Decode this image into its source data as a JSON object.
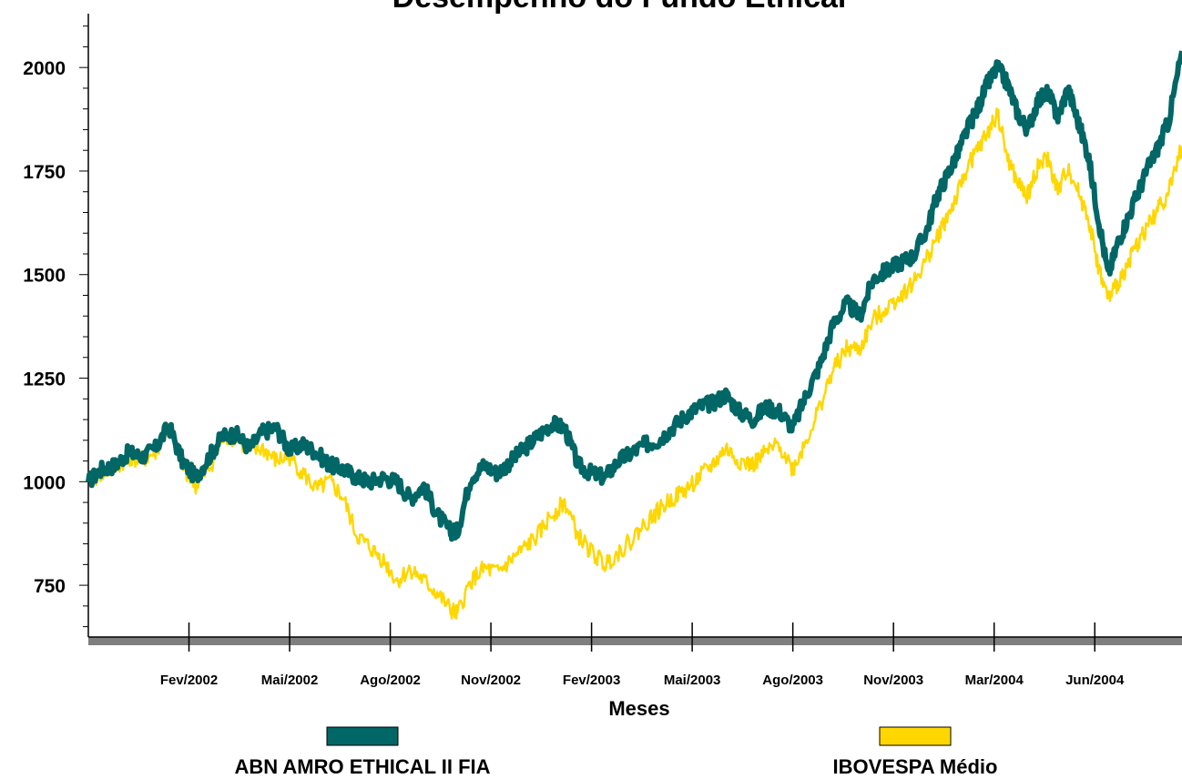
{
  "chart_data": {
    "type": "line",
    "title": "Desempenho do Fundo Ethical",
    "xlabel": "Meses",
    "ylabel": "",
    "ylim": [
      625,
      2130
    ],
    "yticks": [
      750,
      1000,
      1250,
      1500,
      1750,
      2000
    ],
    "ytick_labels": [
      "750",
      "1000",
      "1250",
      "1500",
      "1750",
      "2000"
    ],
    "x_tick_labels": [
      "Fev/2002",
      "Mai/2002",
      "Ago/2002",
      "Nov/2002",
      "Fev/2003",
      "Mai/2003",
      "Ago/2003",
      "Nov/2003",
      "Mar/2004",
      "Jun/2004"
    ],
    "x_tick_positions": [
      3,
      6,
      9,
      12,
      15,
      18,
      21,
      24,
      27,
      30
    ],
    "xlim": [
      0,
      32.6
    ],
    "grid": false,
    "legend_position": "bottom",
    "series": [
      {
        "name": "ABN AMRO ETHICAL II FIA",
        "color": "#006666",
        "x": [
          0,
          0.4,
          0.8,
          1.2,
          1.6,
          2.0,
          2.4,
          2.8,
          3.2,
          3.6,
          4.0,
          4.4,
          4.8,
          5.2,
          5.6,
          6.0,
          6.4,
          6.8,
          7.2,
          7.6,
          8.0,
          8.4,
          8.8,
          9.2,
          9.6,
          10.0,
          10.4,
          10.8,
          11.0,
          11.4,
          11.8,
          12.2,
          12.6,
          13.0,
          13.4,
          13.8,
          14.2,
          14.6,
          15.0,
          15.4,
          15.8,
          16.2,
          16.6,
          17.0,
          17.4,
          17.8,
          18.2,
          18.6,
          19.0,
          19.4,
          19.8,
          20.2,
          20.6,
          21.0,
          21.4,
          21.8,
          22.2,
          22.6,
          23.0,
          23.4,
          23.8,
          24.2,
          24.6,
          25.0,
          25.3,
          25.6,
          25.9,
          26.2,
          26.5,
          26.8,
          27.1,
          27.4,
          27.7,
          28.0,
          28.3,
          28.6,
          28.9,
          29.2,
          29.5,
          29.8,
          30.1,
          30.4,
          30.7,
          31.0,
          31.3,
          31.6,
          31.9,
          32.2,
          32.6
        ],
        "values": [
          1000,
          1030,
          1040,
          1070,
          1060,
          1080,
          1135,
          1050,
          1010,
          1060,
          1110,
          1115,
          1080,
          1120,
          1130,
          1075,
          1090,
          1070,
          1040,
          1030,
          1010,
          1000,
          1010,
          1000,
          960,
          990,
          920,
          880,
          880,
          1010,
          1040,
          1020,
          1050,
          1080,
          1110,
          1140,
          1130,
          1040,
          1020,
          1010,
          1050,
          1070,
          1090,
          1100,
          1130,
          1160,
          1180,
          1190,
          1210,
          1170,
          1150,
          1180,
          1170,
          1130,
          1210,
          1280,
          1380,
          1430,
          1400,
          1490,
          1510,
          1530,
          1545,
          1610,
          1690,
          1740,
          1790,
          1850,
          1900,
          1960,
          2000,
          1960,
          1890,
          1850,
          1920,
          1940,
          1880,
          1950,
          1870,
          1790,
          1640,
          1500,
          1580,
          1640,
          1700,
          1760,
          1810,
          1870,
          1900
        ],
        "values_end": 2040
      },
      {
        "name": "IBOVESPA Médio",
        "color": "#FFD700",
        "x": [
          0,
          0.4,
          0.8,
          1.2,
          1.6,
          2.0,
          2.4,
          2.8,
          3.2,
          3.6,
          4.0,
          4.4,
          4.8,
          5.2,
          5.6,
          6.0,
          6.4,
          6.8,
          7.2,
          7.6,
          8.0,
          8.4,
          8.8,
          9.2,
          9.6,
          10.0,
          10.4,
          10.8,
          11.0,
          11.4,
          11.8,
          12.2,
          12.6,
          13.0,
          13.4,
          13.8,
          14.2,
          14.6,
          15.0,
          15.4,
          15.8,
          16.2,
          16.6,
          17.0,
          17.4,
          17.8,
          18.2,
          18.6,
          19.0,
          19.4,
          19.8,
          20.2,
          20.6,
          21.0,
          21.4,
          21.8,
          22.2,
          22.6,
          23.0,
          23.4,
          23.8,
          24.2,
          24.6,
          25.0,
          25.3,
          25.6,
          25.9,
          26.2,
          26.5,
          26.8,
          27.1,
          27.4,
          27.7,
          28.0,
          28.3,
          28.6,
          28.9,
          29.2,
          29.5,
          29.8,
          30.1,
          30.4,
          30.7,
          31.0,
          31.3,
          31.6,
          31.9,
          32.2,
          32.6
        ],
        "values": [
          1000,
          1020,
          1030,
          1060,
          1050,
          1070,
          1130,
          1040,
          990,
          1030,
          1100,
          1110,
          1070,
          1080,
          1050,
          1060,
          1020,
          980,
          1000,
          960,
          870,
          840,
          810,
          760,
          790,
          760,
          730,
          690,
          680,
          760,
          790,
          780,
          810,
          840,
          870,
          920,
          950,
          870,
          830,
          800,
          830,
          860,
          900,
          930,
          960,
          980,
          1010,
          1040,
          1080,
          1050,
          1040,
          1070,
          1090,
          1030,
          1100,
          1180,
          1270,
          1320,
          1320,
          1390,
          1420,
          1450,
          1480,
          1540,
          1590,
          1640,
          1690,
          1760,
          1800,
          1840,
          1890,
          1780,
          1720,
          1690,
          1760,
          1780,
          1700,
          1760,
          1700,
          1640,
          1520,
          1440,
          1480,
          1530,
          1580,
          1620,
          1660,
          1700,
          1720
        ],
        "values_end": 1810
      }
    ]
  }
}
